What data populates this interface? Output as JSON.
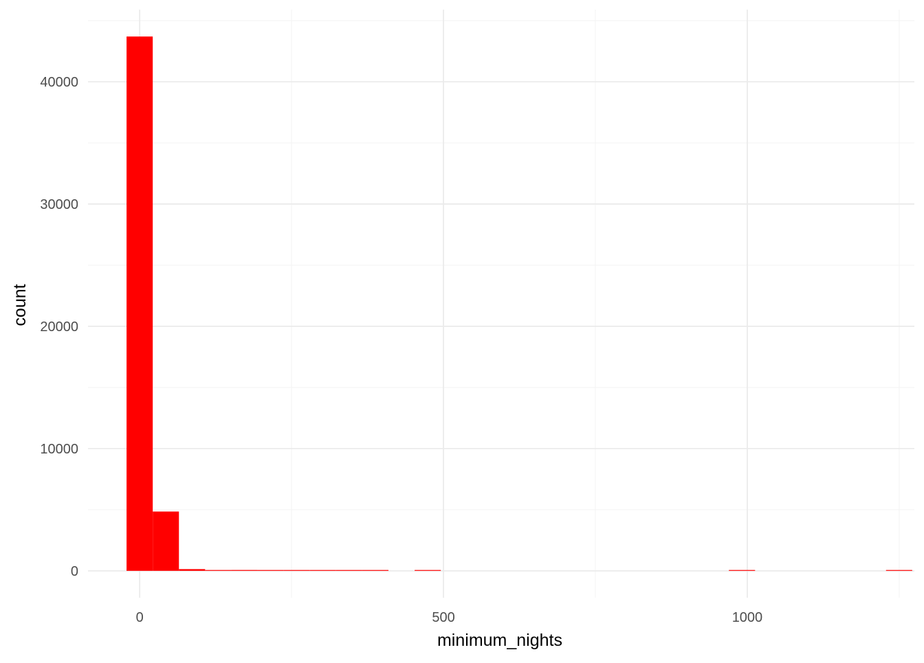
{
  "chart_data": {
    "type": "bar",
    "subtype": "histogram",
    "title": "",
    "xlabel": "minimum_nights",
    "ylabel": "count",
    "bar_color": "#ff0000",
    "bin_width": 43.1,
    "bins": [
      {
        "x": 0.0,
        "count": 43700
      },
      {
        "x": 43.1,
        "count": 4850
      },
      {
        "x": 86.2,
        "count": 140
      },
      {
        "x": 129.3,
        "count": 15
      },
      {
        "x": 172.4,
        "count": 70
      },
      {
        "x": 215.5,
        "count": 6
      },
      {
        "x": 258.6,
        "count": 3
      },
      {
        "x": 301.7,
        "count": 2
      },
      {
        "x": 344.8,
        "count": 5
      },
      {
        "x": 387.9,
        "count": 1
      },
      {
        "x": 431.0,
        "count": 0
      },
      {
        "x": 474.1,
        "count": 2
      },
      {
        "x": 517.2,
        "count": 0
      },
      {
        "x": 560.3,
        "count": 0
      },
      {
        "x": 603.4,
        "count": 0
      },
      {
        "x": 646.5,
        "count": 0
      },
      {
        "x": 689.6,
        "count": 0
      },
      {
        "x": 732.7,
        "count": 0
      },
      {
        "x": 775.8,
        "count": 0
      },
      {
        "x": 818.9,
        "count": 0
      },
      {
        "x": 862.0,
        "count": 0
      },
      {
        "x": 905.1,
        "count": 0
      },
      {
        "x": 948.2,
        "count": 0
      },
      {
        "x": 991.3,
        "count": 1
      },
      {
        "x": 1034.4,
        "count": 0
      },
      {
        "x": 1077.5,
        "count": 0
      },
      {
        "x": 1120.6,
        "count": 0
      },
      {
        "x": 1163.7,
        "count": 0
      },
      {
        "x": 1206.8,
        "count": 0
      },
      {
        "x": 1249.9,
        "count": 1
      }
    ],
    "xlim": [
      -85,
      1275
    ],
    "ylim": [
      -2200,
      45900
    ],
    "x_major_ticks": [
      0,
      500,
      1000
    ],
    "x_minor_ticks": [
      250,
      750,
      1250
    ],
    "y_major_ticks": [
      0,
      10000,
      20000,
      30000,
      40000
    ],
    "y_minor_ticks": [
      5000,
      15000,
      25000,
      35000,
      45000
    ],
    "x_tick_labels": [
      "0",
      "500",
      "1000"
    ],
    "y_tick_labels": [
      "0",
      "10000",
      "20000",
      "30000",
      "40000"
    ],
    "grid": true,
    "legend": "none"
  }
}
